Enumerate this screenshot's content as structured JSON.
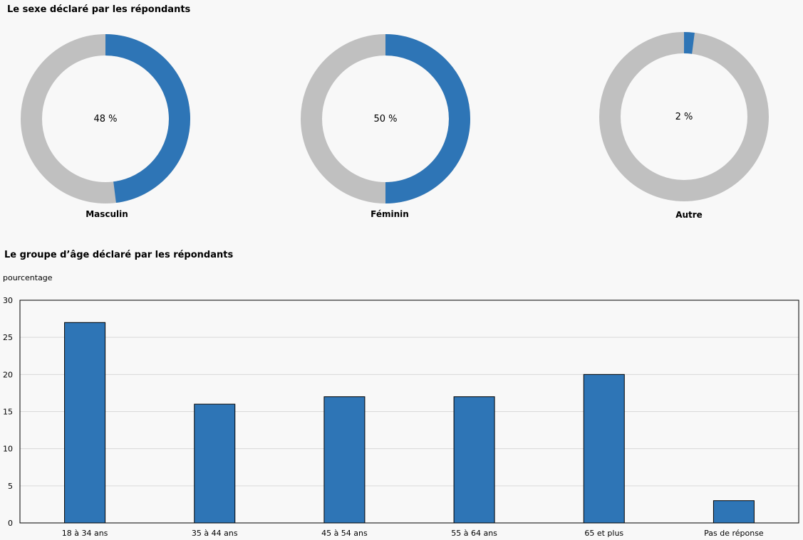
{
  "chart_data": [
    {
      "type": "pie",
      "variant": "donut",
      "title": "Le sexe déclaré par les répondants",
      "charts": [
        {
          "label": "Masculin",
          "value": 48,
          "value_text": "48 %"
        },
        {
          "label": "Féminin",
          "value": 50,
          "value_text": "50 %"
        },
        {
          "label": "Autre",
          "value": 2,
          "value_text": "2 %"
        }
      ],
      "colors": {
        "filled": "#2e75b6",
        "remainder": "#c0c0c0"
      }
    },
    {
      "type": "bar",
      "title": "Le groupe d’âge déclaré par les répondants",
      "ylabel": "pourcentage",
      "xlabel": "",
      "categories": [
        "18 à 34 ans",
        "35 à 44 ans",
        "45 à 54 ans",
        "55 à 64 ans",
        "65 et plus",
        "Pas de réponse"
      ],
      "values": [
        27,
        16,
        17,
        17,
        20,
        3
      ],
      "ylim": [
        0,
        30
      ],
      "yticks": [
        0,
        5,
        10,
        15,
        20,
        25,
        30
      ],
      "grid": true,
      "colors": {
        "bar": "#2e75b6",
        "grid": "#d9d9d9"
      }
    }
  ]
}
